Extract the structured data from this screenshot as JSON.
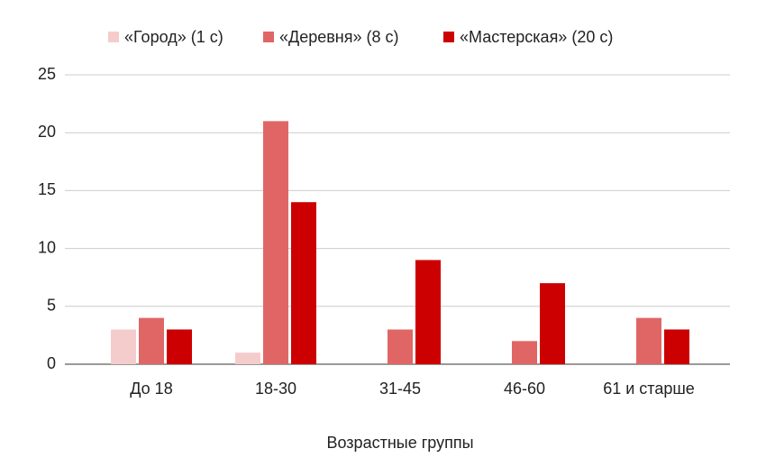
{
  "chart_data": {
    "type": "bar",
    "x_label": "Возрастные группы",
    "categories": [
      "До 18",
      "18-30",
      "31-45",
      "46-60",
      "61 и старше"
    ],
    "series": [
      {
        "name": "«Город» (1 с)",
        "color": "#f4cccc",
        "values": [
          3,
          1,
          0,
          0,
          0
        ]
      },
      {
        "name": "«Деревня» (8 с)",
        "color": "#e06666",
        "values": [
          4,
          21,
          3,
          2,
          4
        ]
      },
      {
        "name": "«Мастерская» (20 с)",
        "color": "#cc0000",
        "values": [
          3,
          14,
          9,
          7,
          3
        ]
      }
    ],
    "ylim": [
      0,
      25
    ],
    "yticks": [
      0,
      5,
      10,
      15,
      20,
      25
    ],
    "grid": true,
    "legend": "top"
  }
}
